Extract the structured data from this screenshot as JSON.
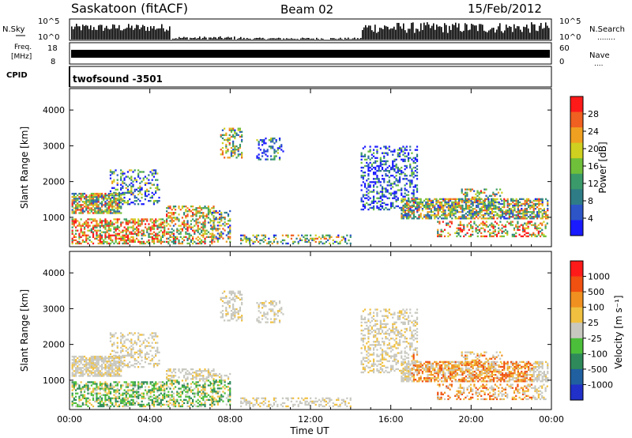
{
  "header": {
    "station": "Saskatoon (fitACF)",
    "beam": "Beam 02",
    "date": "15/Feb/2012"
  },
  "nsky_panel": {
    "left_label": "N.Sky",
    "right_label": "N.Search",
    "right_legend": "........",
    "ticks": [
      "10^5",
      "10^0"
    ]
  },
  "freq_panel": {
    "left_label_1": "Freq.",
    "left_label_2": "[MHz]",
    "left_ticks": [
      "18",
      "8"
    ],
    "right_label": "Nave",
    "right_legend": "....",
    "right_ticks": [
      "60",
      "0"
    ]
  },
  "cpid_panel": {
    "label": "CPID",
    "value": "twofsound -3501"
  },
  "chart_data": [
    {
      "type": "heatmap",
      "ylabel": "Slant Range [km]",
      "yticks": [
        "4000",
        "3000",
        "2000",
        "1000"
      ],
      "ylim": [
        180,
        4600
      ],
      "xlim": [
        0,
        24
      ],
      "colorbar": {
        "label": "Power [dB]",
        "ticks": [
          "28",
          "24",
          "20",
          "16",
          "12",
          "8",
          "4"
        ],
        "colors": [
          "#1a1aff",
          "#2d55c8",
          "#2e7d86",
          "#3a9a6a",
          "#6fbf3a",
          "#cfd020",
          "#f0a020",
          "#f06020",
          "#ff1a1a"
        ]
      }
    },
    {
      "type": "heatmap",
      "ylabel": "Slant Range [km]",
      "yticks": [
        "4000",
        "3000",
        "2000",
        "1000"
      ],
      "ylim": [
        180,
        4600
      ],
      "xlim": [
        0,
        24
      ],
      "xticks": [
        "00:00",
        "04:00",
        "08:00",
        "12:00",
        "16:00",
        "20:00",
        "00:00"
      ],
      "xlabel": "Time UT",
      "colorbar": {
        "label": "Velocity [m s⁻¹]",
        "ticks": [
          "1000",
          "500",
          "100",
          "25",
          "-25",
          "-100",
          "-500",
          "-1000"
        ],
        "colors": [
          "#2030c8",
          "#2060a0",
          "#2e8a5a",
          "#4cbf3a",
          "#c8c8c0",
          "#f0c040",
          "#f09020",
          "#f05010",
          "#ff1a1a"
        ]
      }
    }
  ]
}
